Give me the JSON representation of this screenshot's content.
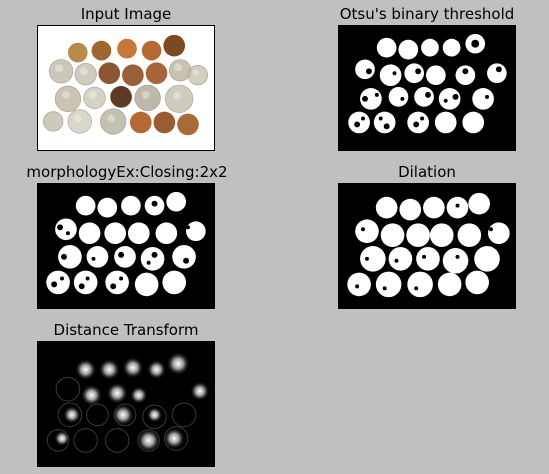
{
  "panels": [
    {
      "title": "Input Image"
    },
    {
      "title": "Otsu's binary threshold"
    },
    {
      "title": "morphologyEx:Closing:2x2"
    },
    {
      "title": "Dilation"
    },
    {
      "title": "Distance Transform"
    }
  ],
  "colors": {
    "background": "#c0c0c0",
    "foreground_mask": "#ffffff",
    "mask_background": "#000000",
    "copper": "#b86a3a",
    "silver": "#c8c4b8"
  }
}
